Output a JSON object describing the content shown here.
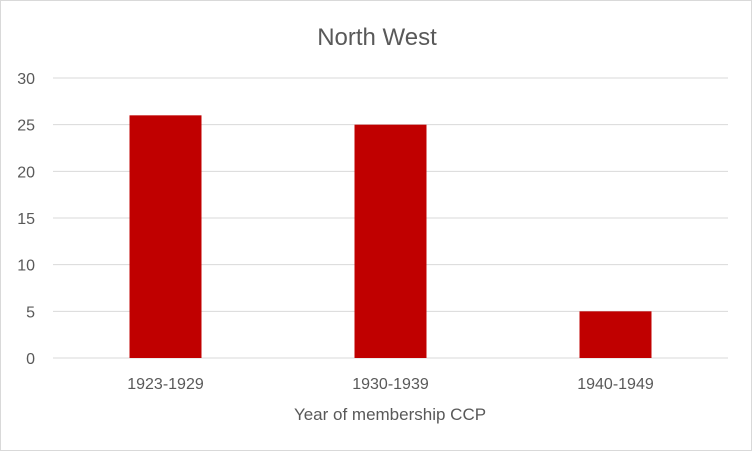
{
  "chart_data": {
    "type": "bar",
    "title": "North West",
    "categories": [
      "1923-1929",
      "1930-1939",
      "1940-1949"
    ],
    "values": [
      26,
      25,
      5
    ],
    "xlabel": "Year of membership CCP",
    "ylabel": "",
    "ylim": [
      0,
      30
    ],
    "yticks": [
      "0",
      "5",
      "10",
      "15",
      "20",
      "25",
      "30"
    ],
    "grid": true,
    "legend": "none",
    "bar_color": "#c00000"
  }
}
